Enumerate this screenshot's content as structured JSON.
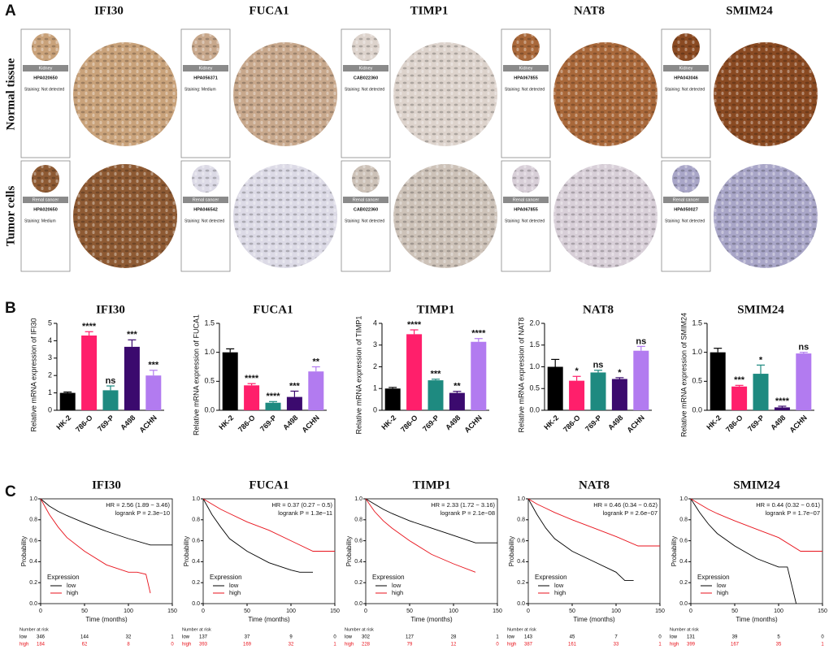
{
  "panel_labels": [
    "A",
    "B",
    "C"
  ],
  "ihc": {
    "genes": [
      "IFI30",
      "FUCA1",
      "TIMP1",
      "NAT8",
      "SMIM24"
    ],
    "rows": [
      "Normal tissue",
      "Tumor cells"
    ],
    "cards": [
      [
        {
          "tissue": "Kidney",
          "antibody": "HPA020650",
          "staining": "Staining: Not detected",
          "tone": "#c9a27a"
        },
        {
          "tissue": "Kidney",
          "antibody": "HPA056371",
          "staining": "Staining: Medium",
          "tone": "#c8a88c"
        },
        {
          "tissue": "Kidney",
          "antibody": "CAB022360",
          "staining": "Staining: Not detected",
          "tone": "#ddd3cc"
        },
        {
          "tissue": "Kidney",
          "antibody": "HPA067855",
          "staining": "Staining: Not detected",
          "tone": "#a9683a"
        },
        {
          "tissue": "Kidney",
          "antibody": "HPA043046",
          "staining": "Staining: Not detected",
          "tone": "#8a4a22"
        }
      ],
      [
        {
          "tissue": "Renal cancer",
          "antibody": "HPA020650",
          "staining": "Staining: Medium",
          "tone": "#8e5a33"
        },
        {
          "tissue": "Renal cancer",
          "antibody": "HPA046542",
          "staining": "Staining: Not detected",
          "tone": "#dcdae6"
        },
        {
          "tissue": "Renal cancer",
          "antibody": "CAB022360",
          "staining": "Staining: Not detected",
          "tone": "#cdc2b8"
        },
        {
          "tissue": "Renal cancer",
          "antibody": "HPA067855",
          "staining": "Staining: Not detected",
          "tone": "#d8cfd8"
        },
        {
          "tissue": "Renal cancer",
          "antibody": "HPA050027",
          "staining": "Staining: Not detected",
          "tone": "#a9a6c8"
        }
      ]
    ]
  },
  "chart_data": [
    {
      "type": "bar",
      "title": "IFI30",
      "y_label": "Relative mRNA expression of IFI30",
      "categories": [
        "HK-2",
        "786-O",
        "769-P",
        "A498",
        "ACHN"
      ],
      "values": [
        1.0,
        4.3,
        1.15,
        3.65,
        2.0
      ],
      "errors": [
        0.05,
        0.22,
        0.25,
        0.4,
        0.3
      ],
      "annotations": [
        null,
        "****",
        "ns",
        "***",
        "***"
      ],
      "colors": [
        "#000000",
        "#ff1f6b",
        "#1e8a80",
        "#3b0a6e",
        "#b27bf0"
      ],
      "ylim": [
        0,
        5
      ],
      "yticks": [
        0,
        1,
        2,
        3,
        4,
        5
      ]
    },
    {
      "type": "bar",
      "title": "FUCA1",
      "y_label": "Relative mRNA expression of FUCA1",
      "categories": [
        "HK-2",
        "786-O",
        "769-P",
        "A498",
        "ACHN"
      ],
      "values": [
        1.0,
        0.43,
        0.13,
        0.23,
        0.67
      ],
      "errors": [
        0.06,
        0.03,
        0.02,
        0.1,
        0.08
      ],
      "annotations": [
        null,
        "****",
        "****",
        "***",
        "**"
      ],
      "colors": [
        "#000000",
        "#ff1f6b",
        "#1e8a80",
        "#3b0a6e",
        "#b27bf0"
      ],
      "ylim": [
        0,
        1.5
      ],
      "yticks": [
        {
          "value": 0,
          "label": "0.0"
        },
        0.5,
        {
          "value": 1,
          "label": "1.0"
        },
        1.5
      ]
    },
    {
      "type": "bar",
      "title": "TIMP1",
      "y_label": "Relative mRNA expression of TIMP1",
      "categories": [
        "HK-2",
        "786-O",
        "769-P",
        "A498",
        "ACHN"
      ],
      "values": [
        1.0,
        3.5,
        1.38,
        0.8,
        3.15
      ],
      "errors": [
        0.05,
        0.2,
        0.05,
        0.07,
        0.15
      ],
      "annotations": [
        null,
        "****",
        "***",
        "**",
        "****"
      ],
      "colors": [
        "#000000",
        "#ff1f6b",
        "#1e8a80",
        "#3b0a6e",
        "#b27bf0"
      ],
      "ylim": [
        0,
        4
      ],
      "yticks": [
        0,
        1,
        2,
        3,
        4
      ]
    },
    {
      "type": "bar",
      "title": "NAT8",
      "y_label": "Relative mRNA expression of NAT8",
      "categories": [
        "HK-2",
        "786-O",
        "769-P",
        "A498",
        "ACHN"
      ],
      "values": [
        1.0,
        0.68,
        0.87,
        0.72,
        1.37
      ],
      "errors": [
        0.17,
        0.1,
        0.05,
        0.03,
        0.1
      ],
      "annotations": [
        null,
        "*",
        "ns",
        "*",
        "ns"
      ],
      "colors": [
        "#000000",
        "#ff1f6b",
        "#1e8a80",
        "#3b0a6e",
        "#b27bf0"
      ],
      "ylim": [
        0,
        2
      ],
      "yticks": [
        {
          "value": 0,
          "label": "0.0"
        },
        0.5,
        {
          "value": 1,
          "label": "1.0"
        },
        1.5,
        {
          "value": 2,
          "label": "2.0"
        }
      ]
    },
    {
      "type": "bar",
      "title": "SMIM24",
      "y_label": "Relative mRNA expression of SMIM24",
      "categories": [
        "HK-2",
        "786-O",
        "769-P",
        "A498",
        "ACHN"
      ],
      "values": [
        1.0,
        0.41,
        0.63,
        0.05,
        0.98
      ],
      "errors": [
        0.07,
        0.02,
        0.15,
        0.02,
        0.02
      ],
      "annotations": [
        null,
        "***",
        "*",
        "****",
        "ns"
      ],
      "colors": [
        "#000000",
        "#ff1f6b",
        "#1e8a80",
        "#3b0a6e",
        "#b27bf0"
      ],
      "ylim": [
        0,
        1.5
      ],
      "yticks": [
        {
          "value": 0,
          "label": "0.0"
        },
        0.5,
        {
          "value": 1,
          "label": "1.0"
        },
        1.5
      ]
    },
    {
      "type": "line",
      "title": "IFI30",
      "hr": "HR = 2.56 (1.89 − 3.46)",
      "logrank": "logrank P = 2.3e−10",
      "x_label": "Time (months)",
      "y_label": "Probability",
      "legend_title": "Expression",
      "legend": "lower left",
      "series": [
        {
          "name": "low",
          "color": "#000000",
          "x": [
            0,
            10,
            20,
            30,
            50,
            75,
            100,
            125,
            150
          ],
          "values": [
            1,
            0.93,
            0.88,
            0.84,
            0.77,
            0.69,
            0.62,
            0.56,
            0.56
          ],
          "at_risk": [
            346,
            144,
            32,
            1
          ]
        },
        {
          "name": "high",
          "color": "#e8121b",
          "x": [
            0,
            10,
            20,
            30,
            50,
            75,
            100,
            110,
            120,
            125
          ],
          "values": [
            1,
            0.85,
            0.73,
            0.63,
            0.5,
            0.37,
            0.3,
            0.3,
            0.28,
            0.1
          ],
          "at_risk": [
            184,
            62,
            8,
            0
          ]
        }
      ],
      "risk_title": "Number at risk",
      "xlim": [
        0,
        150
      ],
      "xticks": [
        0,
        50,
        100,
        150
      ],
      "ylim": [
        0,
        1
      ],
      "yticks": [
        {
          "value": 0,
          "label": "0.0"
        },
        0.2,
        0.4,
        0.6,
        0.8,
        {
          "value": 1,
          "label": "1.0"
        }
      ]
    },
    {
      "type": "line",
      "title": "FUCA1",
      "hr": "HR = 0.37 (0.27 − 0.5)",
      "logrank": "logrank P = 1.3e−11",
      "x_label": "Time (months)",
      "y_label": "Probability",
      "legend_title": "Expression",
      "legend": "lower left",
      "series": [
        {
          "name": "low",
          "color": "#000000",
          "x": [
            0,
            10,
            20,
            30,
            50,
            75,
            100,
            110,
            125
          ],
          "values": [
            1,
            0.85,
            0.73,
            0.62,
            0.5,
            0.39,
            0.32,
            0.3,
            0.3
          ],
          "at_risk": [
            137,
            37,
            9,
            0
          ]
        },
        {
          "name": "high",
          "color": "#e8121b",
          "x": [
            0,
            10,
            20,
            30,
            50,
            75,
            100,
            125,
            150
          ],
          "values": [
            1,
            0.95,
            0.9,
            0.86,
            0.78,
            0.7,
            0.6,
            0.5,
            0.5
          ],
          "at_risk": [
            393,
            169,
            32,
            1
          ]
        }
      ],
      "risk_title": "Number at risk",
      "xlim": [
        0,
        150
      ],
      "xticks": [
        0,
        50,
        100,
        150
      ],
      "ylim": [
        0,
        1
      ],
      "yticks": [
        {
          "value": 0,
          "label": "0.0"
        },
        0.2,
        0.4,
        0.6,
        0.8,
        {
          "value": 1,
          "label": "1.0"
        }
      ]
    },
    {
      "type": "line",
      "title": "TIMP1",
      "hr": "HR = 2.33 (1.72 − 3.16)",
      "logrank": "logrank P = 2.1e−08",
      "x_label": "Time (months)",
      "y_label": "Probability",
      "legend_title": "Expression",
      "legend": "lower left",
      "series": [
        {
          "name": "low",
          "color": "#000000",
          "x": [
            0,
            10,
            20,
            30,
            50,
            75,
            100,
            125,
            150
          ],
          "values": [
            1,
            0.95,
            0.9,
            0.86,
            0.79,
            0.72,
            0.65,
            0.58,
            0.58
          ],
          "at_risk": [
            302,
            127,
            28,
            1
          ]
        },
        {
          "name": "high",
          "color": "#e8121b",
          "x": [
            0,
            10,
            20,
            30,
            50,
            75,
            100,
            125
          ],
          "values": [
            1,
            0.88,
            0.79,
            0.72,
            0.6,
            0.47,
            0.38,
            0.3
          ],
          "at_risk": [
            228,
            79,
            12,
            0
          ]
        }
      ],
      "risk_title": "Number at risk",
      "xlim": [
        0,
        150
      ],
      "xticks": [
        0,
        50,
        100,
        150
      ],
      "ylim": [
        0,
        1
      ],
      "yticks": [
        {
          "value": 0,
          "label": "0.0"
        },
        0.2,
        0.4,
        0.6,
        0.8,
        {
          "value": 1,
          "label": "1.0"
        }
      ]
    },
    {
      "type": "line",
      "title": "NAT8",
      "hr": "HR = 0.46 (0.34 − 0.62)",
      "logrank": "logrank P = 2.6e−07",
      "x_label": "Time (months)",
      "y_label": "Probability",
      "legend_title": "Expression",
      "legend": "lower left",
      "series": [
        {
          "name": "low",
          "color": "#000000",
          "x": [
            0,
            10,
            20,
            30,
            50,
            75,
            100,
            110,
            120
          ],
          "values": [
            1,
            0.85,
            0.72,
            0.62,
            0.5,
            0.4,
            0.3,
            0.22,
            0.22
          ],
          "at_risk": [
            143,
            45,
            7,
            0
          ]
        },
        {
          "name": "high",
          "color": "#e8121b",
          "x": [
            0,
            10,
            20,
            30,
            50,
            75,
            100,
            125,
            150
          ],
          "values": [
            1,
            0.95,
            0.91,
            0.87,
            0.8,
            0.72,
            0.64,
            0.55,
            0.55
          ],
          "at_risk": [
            387,
            161,
            33,
            1
          ]
        }
      ],
      "risk_title": "Number at risk",
      "xlim": [
        0,
        150
      ],
      "xticks": [
        0,
        50,
        100,
        150
      ],
      "ylim": [
        0,
        1
      ],
      "yticks": [
        {
          "value": 0,
          "label": "0.0"
        },
        0.2,
        0.4,
        0.6,
        0.8,
        {
          "value": 1,
          "label": "1.0"
        }
      ]
    },
    {
      "type": "line",
      "title": "SMIM24",
      "hr": "HR = 0.44 (0.32 − 0.61)",
      "logrank": "logrank P = 1.7e−07",
      "x_label": "Time (months)",
      "y_label": "Probability",
      "legend_title": "Expression",
      "legend": "lower left",
      "series": [
        {
          "name": "low",
          "color": "#000000",
          "x": [
            0,
            10,
            20,
            30,
            50,
            75,
            100,
            110,
            120
          ],
          "values": [
            1,
            0.87,
            0.76,
            0.67,
            0.55,
            0.43,
            0.35,
            0.35,
            0
          ],
          "at_risk": [
            131,
            39,
            5,
            0
          ]
        },
        {
          "name": "high",
          "color": "#e8121b",
          "x": [
            0,
            10,
            20,
            30,
            50,
            75,
            100,
            125,
            150
          ],
          "values": [
            1,
            0.95,
            0.9,
            0.86,
            0.79,
            0.71,
            0.63,
            0.5,
            0.5
          ],
          "at_risk": [
            399,
            167,
            35,
            1
          ]
        }
      ],
      "risk_title": "Number at risk",
      "xlim": [
        0,
        150
      ],
      "xticks": [
        0,
        50,
        100,
        150
      ],
      "ylim": [
        0,
        1
      ],
      "yticks": [
        {
          "value": 0,
          "label": "0.0"
        },
        0.2,
        0.4,
        0.6,
        0.8,
        {
          "value": 1,
          "label": "1.0"
        }
      ]
    }
  ]
}
